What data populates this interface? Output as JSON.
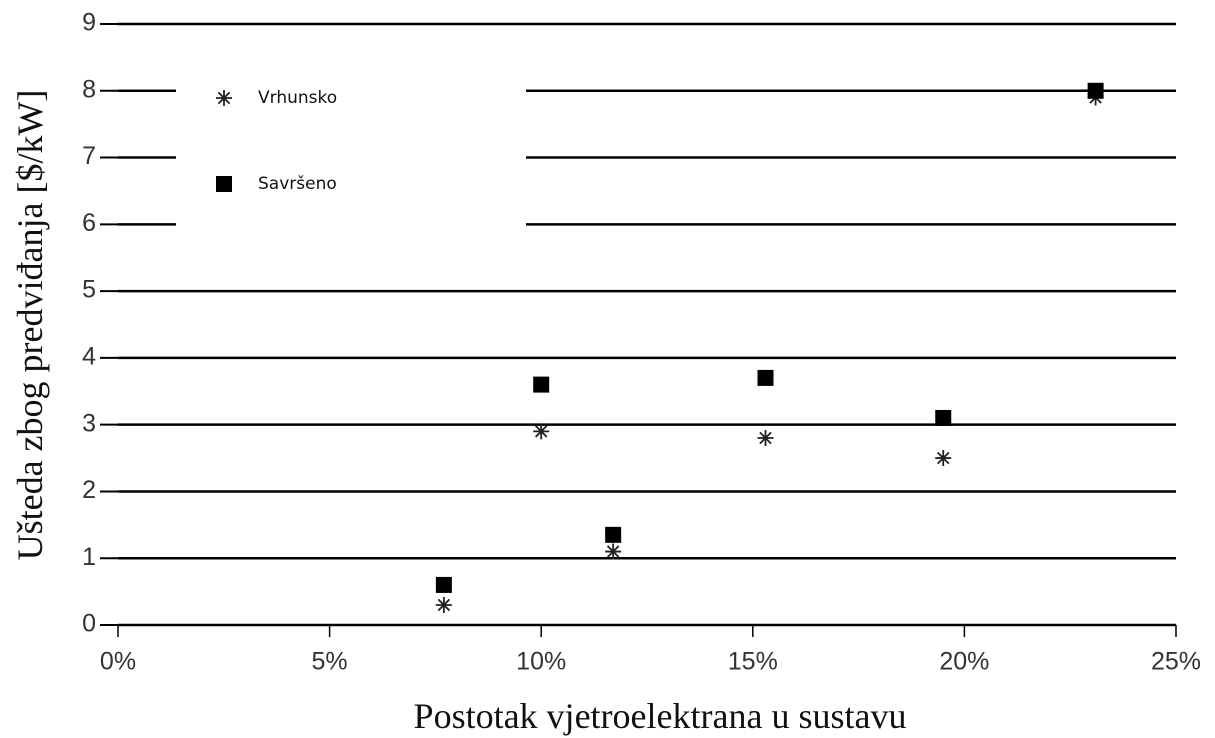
{
  "chart_data": {
    "type": "scatter",
    "x_label": "Postotak vjetroelektrana u sustavu",
    "y_label": "Ušteda zbog predviđanja [$/kW]",
    "xlim": [
      0,
      25
    ],
    "xticks": [
      {
        "value": 0,
        "label": "0%"
      },
      {
        "value": 5,
        "label": "5%"
      },
      {
        "value": 10,
        "label": "10%"
      },
      {
        "value": 15,
        "label": "15%"
      },
      {
        "value": 20,
        "label": "20%"
      },
      {
        "value": 25,
        "label": "25%"
      }
    ],
    "ylim": [
      0,
      9
    ],
    "yticks": [
      0,
      1,
      2,
      3,
      4,
      5,
      6,
      7,
      8,
      9
    ],
    "grid": true,
    "legend": "upper left",
    "series": [
      {
        "name": "Vrhunsko",
        "color": "#222222",
        "marker": "asterisk",
        "x": [
          7.7,
          10,
          11.7,
          15.3,
          19.5,
          23.1
        ],
        "values": [
          0.3,
          2.9,
          1.1,
          2.8,
          2.5,
          7.9
        ]
      },
      {
        "name": "Savršeno",
        "color": "#000000",
        "marker": "square",
        "x": [
          7.7,
          10,
          11.7,
          15.3,
          19.5,
          23.1
        ],
        "values": [
          0.6,
          3.6,
          1.35,
          3.7,
          3.1,
          8.0
        ]
      }
    ]
  }
}
